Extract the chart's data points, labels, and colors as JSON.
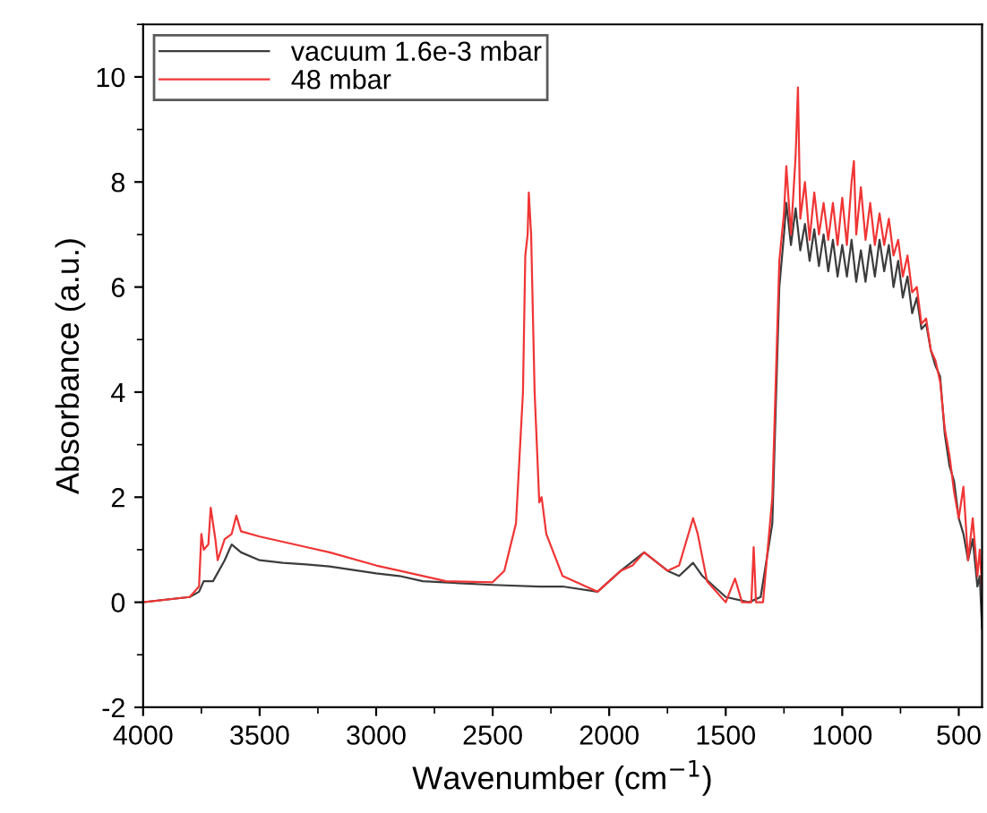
{
  "chart_data": {
    "type": "line",
    "xlabel": "Wavenumber (cm$^{−1}$)",
    "ylabel": "Absorbance (a.u.)",
    "xlim": [
      4000,
      400
    ],
    "ylim": [
      -2,
      11
    ],
    "xticks": [
      4000,
      3500,
      3000,
      2500,
      2000,
      1500,
      1000,
      500
    ],
    "yticks": [
      -2,
      0,
      2,
      4,
      6,
      8,
      10
    ],
    "legend": "top left",
    "series": [
      {
        "name": "vacuum 1.6e-3 mbar",
        "color": "#3c3c3c",
        "x": [
          4000,
          3800,
          3760,
          3740,
          3700,
          3650,
          3620,
          3580,
          3500,
          3400,
          3300,
          3200,
          3000,
          2900,
          2800,
          2500,
          2300,
          2200,
          2050,
          1950,
          1850,
          1750,
          1700,
          1640,
          1600,
          1500,
          1400,
          1350,
          1300,
          1270,
          1250,
          1240,
          1220,
          1200,
          1180,
          1160,
          1140,
          1120,
          1100,
          1080,
          1060,
          1040,
          1020,
          1000,
          980,
          960,
          940,
          920,
          900,
          880,
          860,
          840,
          820,
          800,
          780,
          760,
          740,
          720,
          700,
          680,
          660,
          640,
          620,
          600,
          580,
          560,
          540,
          520,
          500,
          480,
          460,
          440,
          420,
          410,
          400
        ],
        "values": [
          0,
          0.1,
          0.2,
          0.4,
          0.4,
          0.8,
          1.1,
          0.95,
          0.8,
          0.75,
          0.72,
          0.68,
          0.55,
          0.5,
          0.4,
          0.33,
          0.3,
          0.3,
          0.2,
          0.6,
          0.95,
          0.6,
          0.5,
          0.75,
          0.5,
          0.1,
          0.0,
          0.1,
          1.5,
          6.0,
          7.0,
          7.6,
          6.8,
          7.5,
          6.7,
          7.2,
          6.5,
          7.1,
          6.4,
          7.0,
          6.3,
          6.9,
          6.2,
          6.8,
          6.2,
          6.9,
          6.1,
          6.7,
          6.1,
          6.8,
          6.2,
          6.9,
          6.3,
          6.8,
          6.0,
          6.5,
          5.8,
          6.2,
          5.5,
          5.8,
          5.2,
          5.3,
          4.8,
          4.5,
          4.3,
          3.2,
          2.6,
          2.3,
          1.6,
          1.3,
          0.8,
          1.2,
          0.3,
          0.5,
          -0.5
        ]
      },
      {
        "name": "48 mbar",
        "color": "#f03535",
        "x": [
          4000,
          3800,
          3760,
          3750,
          3740,
          3720,
          3710,
          3690,
          3680,
          3650,
          3620,
          3600,
          3580,
          3500,
          3300,
          3200,
          3000,
          2900,
          2700,
          2500,
          2450,
          2400,
          2370,
          2360,
          2350,
          2345,
          2335,
          2320,
          2300,
          2290,
          2270,
          2200,
          2100,
          2050,
          1950,
          1900,
          1850,
          1750,
          1700,
          1640,
          1620,
          1580,
          1500,
          1460,
          1430,
          1390,
          1380,
          1370,
          1340,
          1300,
          1270,
          1250,
          1240,
          1220,
          1200,
          1190,
          1180,
          1160,
          1140,
          1120,
          1100,
          1080,
          1060,
          1040,
          1020,
          1000,
          980,
          960,
          950,
          940,
          920,
          900,
          880,
          860,
          840,
          820,
          800,
          780,
          760,
          740,
          720,
          700,
          680,
          660,
          640,
          620,
          600,
          580,
          560,
          540,
          520,
          500,
          480,
          460,
          440,
          420,
          410,
          400
        ],
        "values": [
          0,
          0.1,
          0.3,
          1.3,
          1.0,
          1.1,
          1.8,
          1.2,
          0.8,
          1.2,
          1.3,
          1.65,
          1.35,
          1.25,
          1.05,
          0.95,
          0.7,
          0.6,
          0.4,
          0.38,
          0.6,
          1.5,
          4,
          6.6,
          7.0,
          7.8,
          7.0,
          4,
          1.9,
          2.0,
          1.3,
          0.5,
          0.3,
          0.2,
          0.6,
          0.7,
          0.95,
          0.6,
          0.7,
          1.6,
          1.3,
          0.4,
          0.0,
          0.45,
          0.0,
          0.0,
          1.05,
          0.0,
          0.0,
          2,
          6.5,
          7.4,
          8.3,
          7.0,
          8.5,
          9.8,
          7.3,
          8.0,
          6.9,
          7.8,
          7.0,
          7.6,
          6.9,
          7.6,
          6.8,
          7.7,
          6.8,
          8.0,
          8.4,
          7.0,
          7.9,
          6.9,
          7.6,
          6.8,
          7.4,
          6.8,
          7.3,
          6.6,
          6.9,
          6.2,
          6.6,
          5.9,
          6.0,
          5.3,
          5.4,
          4.8,
          4.6,
          4.2,
          3.3,
          2.8,
          2.1,
          1.6,
          2.2,
          0.8,
          1.6,
          0.5,
          1.0,
          0.3
        ]
      }
    ]
  }
}
